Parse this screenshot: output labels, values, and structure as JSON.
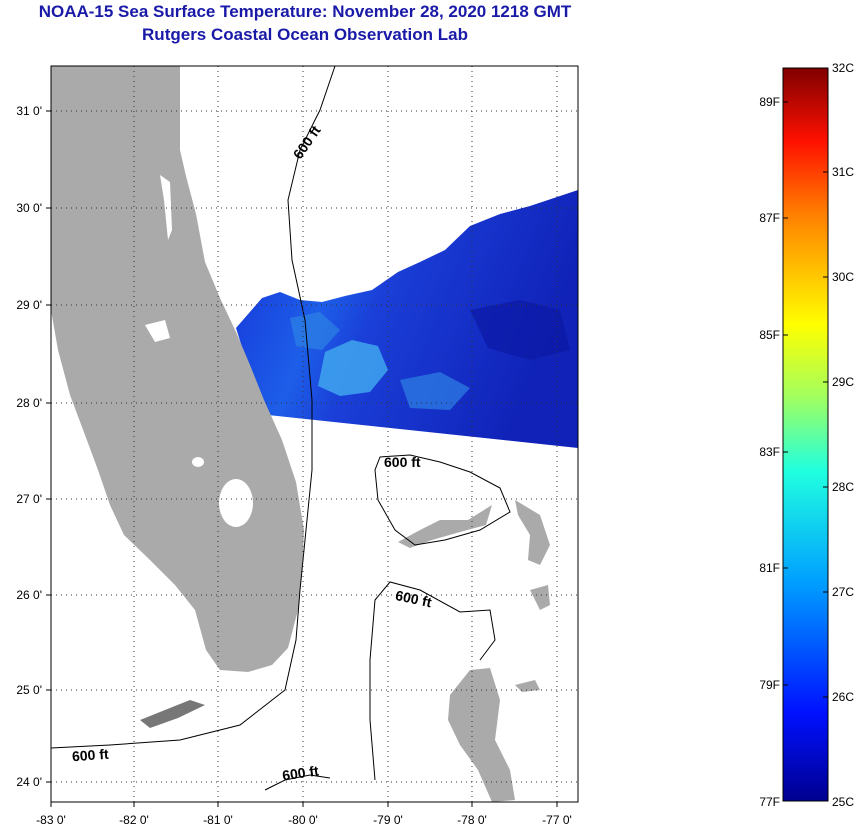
{
  "header": {
    "title_line1": "NOAA-15 Sea Surface Temperature:  November 28, 2020 1218 GMT",
    "title_line2": "Rutgers Coastal Ocean Observation Lab"
  },
  "map": {
    "lat_labels": [
      "31 0'",
      "30 0'",
      "29 0'",
      "28 0'",
      "27 0'",
      "26 0'",
      "25 0'",
      "24 0'"
    ],
    "lon_labels": [
      "-83 0'",
      "-82 0'",
      "-81 0'",
      "-80 0'",
      "-79 0'",
      "-78 0'",
      "-77 0'"
    ],
    "isobath_label": "600 ft",
    "colors": {
      "land": "#aaaaaa",
      "ocean_blank": "#ffffff",
      "sst_deep": "#1a2ad0",
      "sst_mid": "#1144e8",
      "sst_warm": "#3aa0ec"
    }
  },
  "colorbar": {
    "celsius_labels": [
      "32C",
      "31C",
      "30C",
      "29C",
      "28C",
      "27C",
      "26C",
      "25C"
    ],
    "fahrenheit_labels": [
      "89F",
      "87F",
      "85F",
      "83F",
      "81F",
      "79F",
      "77F"
    ],
    "min_c": 25,
    "max_c": 32
  }
}
